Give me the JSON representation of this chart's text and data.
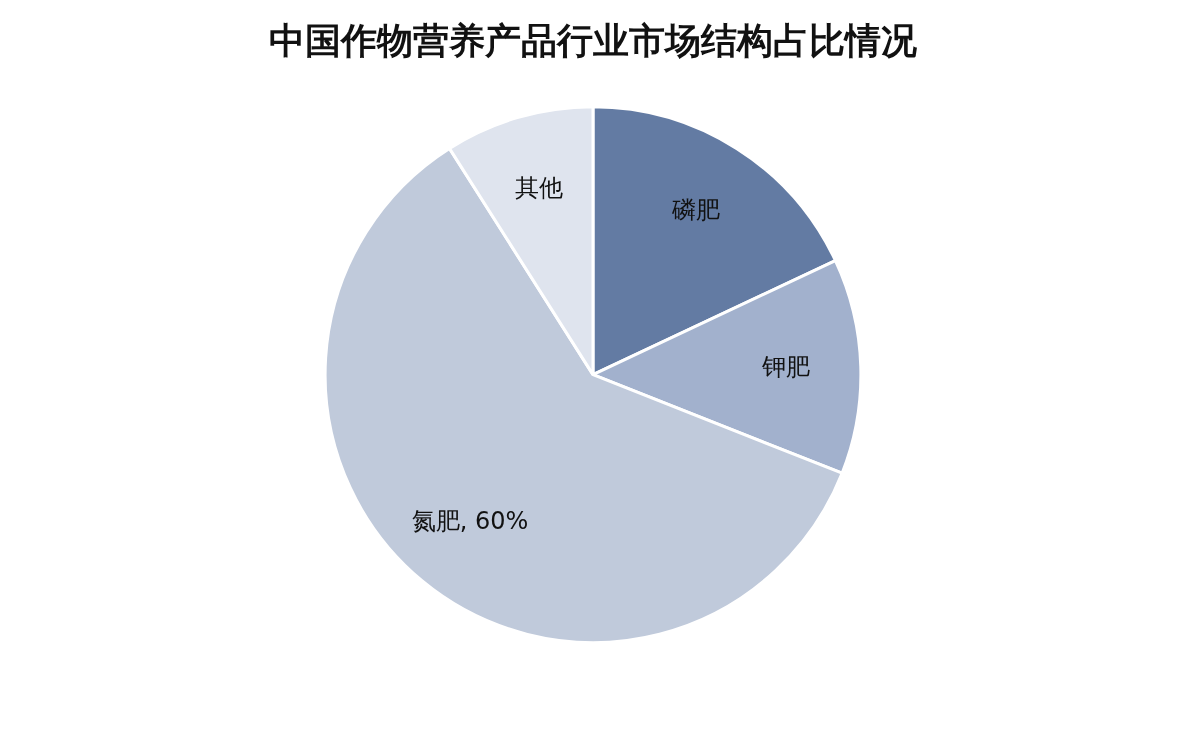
{
  "chart_data": {
    "type": "pie",
    "title": "中国作物营养产品行业市场结构占比情况",
    "categories": [
      "磷肥",
      "钾肥",
      "氮肥",
      "其他"
    ],
    "values": [
      18,
      13,
      60,
      9
    ],
    "colors": [
      "#637ba3",
      "#a2b1cd",
      "#c0cadb",
      "#dfe4ee"
    ],
    "value_labels": [
      null,
      null,
      "60%",
      null
    ],
    "legend": false
  }
}
